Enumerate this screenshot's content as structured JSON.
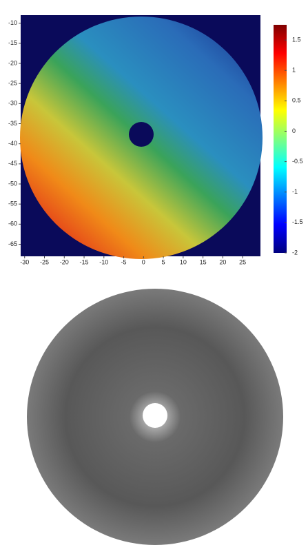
{
  "chart_data": {
    "type": "heatmap",
    "colormap": "jet",
    "xlim": [
      -31,
      29.5
    ],
    "xticks": [
      -30,
      -25,
      -20,
      -15,
      -10,
      -5,
      0,
      5,
      10,
      15,
      20,
      25
    ],
    "ylim": [
      -68,
      -8
    ],
    "yticks": [
      -10,
      -15,
      -20,
      -25,
      -30,
      -35,
      -40,
      -45,
      -50,
      -55,
      -60,
      -65
    ],
    "clim": [
      -2,
      1.75
    ],
    "cticks": [
      1.5,
      1,
      0.5,
      0,
      -0.5,
      -1,
      -1.5,
      -2
    ]
  }
}
